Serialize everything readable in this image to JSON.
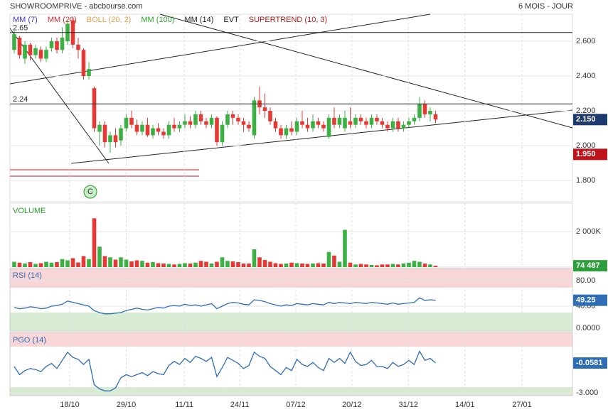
{
  "header": {
    "title": "SHOWROOMPRIVE - abcbourse.com",
    "period": "6 MOIS - JOUR"
  },
  "chart_data": [
    {
      "type": "candlestick",
      "legend": [
        {
          "name": "MM (7)",
          "color": "#3a3acc"
        },
        {
          "name": "MM (20)",
          "color": "#d03030"
        },
        {
          "name": "BOLL (20, 2)",
          "color": "#e8a04a"
        },
        {
          "name": "MM (100)",
          "color": "#2aa52a"
        },
        {
          "name": "MM (14)",
          "color": "#222222"
        },
        {
          "name": "EVT",
          "color": "#222222"
        },
        {
          "name": "SUPERTREND (10, 3)",
          "color": "#b01818"
        }
      ],
      "up_color": "#3cb043",
      "down_color": "#e53935",
      "open": [
        2.55,
        2.62,
        2.5,
        2.58,
        2.52,
        2.55,
        2.5,
        2.56,
        2.6,
        2.55,
        2.6,
        2.72,
        2.58,
        2.55,
        2.4,
        2.33,
        2.08,
        2.12,
        2.02,
        2.06,
        2.03,
        2.1,
        2.16,
        2.12,
        2.08,
        2.12,
        2.06,
        2.1,
        2.08,
        2.06,
        2.12,
        2.1,
        2.12,
        2.14,
        2.12,
        2.18,
        2.14,
        2.12,
        2.16,
        2.02,
        2.12,
        2.18,
        2.16,
        2.14,
        2.12,
        2.06,
        2.26,
        2.22,
        2.2,
        2.14,
        2.1,
        2.06,
        2.1,
        2.08,
        2.14,
        2.12,
        2.1,
        2.14,
        2.12,
        2.05,
        2.16,
        2.12,
        2.1,
        2.14,
        2.12,
        2.16,
        2.14,
        2.12,
        2.16,
        2.14,
        2.12,
        2.1,
        2.14,
        2.1,
        2.12,
        2.14,
        2.16,
        2.24,
        2.18,
        2.18
      ],
      "high": [
        2.66,
        2.63,
        2.6,
        2.59,
        2.58,
        2.57,
        2.57,
        2.62,
        2.62,
        2.68,
        2.72,
        2.74,
        2.62,
        2.56,
        2.48,
        2.34,
        2.14,
        2.14,
        2.08,
        2.1,
        2.12,
        2.18,
        2.2,
        2.15,
        2.14,
        2.16,
        2.12,
        2.13,
        2.1,
        2.14,
        2.16,
        2.14,
        2.18,
        2.17,
        2.2,
        2.2,
        2.16,
        2.18,
        2.17,
        2.14,
        2.2,
        2.2,
        2.18,
        2.16,
        2.14,
        2.28,
        2.34,
        2.3,
        2.22,
        2.16,
        2.12,
        2.12,
        2.14,
        2.16,
        2.2,
        2.16,
        2.18,
        2.16,
        2.14,
        2.18,
        2.22,
        2.18,
        2.2,
        2.22,
        2.18,
        2.18,
        2.16,
        2.18,
        2.18,
        2.16,
        2.14,
        2.16,
        2.16,
        2.14,
        2.16,
        2.18,
        2.28,
        2.26,
        2.22,
        2.2
      ],
      "low": [
        2.53,
        2.5,
        2.47,
        2.49,
        2.5,
        2.48,
        2.48,
        2.54,
        2.53,
        2.53,
        2.58,
        2.56,
        2.5,
        2.38,
        2.38,
        2.08,
        2.0,
        1.99,
        1.96,
        1.99,
        2.0,
        2.08,
        2.1,
        2.06,
        2.06,
        2.05,
        2.04,
        2.06,
        2.04,
        2.04,
        2.08,
        2.08,
        2.1,
        2.1,
        2.1,
        2.12,
        2.1,
        2.1,
        2.0,
        2.0,
        2.1,
        2.12,
        2.12,
        2.08,
        2.08,
        2.04,
        2.18,
        2.16,
        2.12,
        2.08,
        2.04,
        2.04,
        2.06,
        2.06,
        2.1,
        2.08,
        2.08,
        2.1,
        2.08,
        2.04,
        2.1,
        2.1,
        2.08,
        2.1,
        2.1,
        2.12,
        2.1,
        2.1,
        2.12,
        2.1,
        2.08,
        2.08,
        2.08,
        2.08,
        2.1,
        2.12,
        2.14,
        2.16,
        2.14,
        2.13
      ],
      "close": [
        2.64,
        2.52,
        2.58,
        2.52,
        2.56,
        2.5,
        2.55,
        2.6,
        2.55,
        2.62,
        2.7,
        2.58,
        2.55,
        2.4,
        2.44,
        2.1,
        2.12,
        2.02,
        2.06,
        2.02,
        2.1,
        2.16,
        2.12,
        2.08,
        2.12,
        2.06,
        2.1,
        2.08,
        2.06,
        2.12,
        2.1,
        2.12,
        2.14,
        2.12,
        2.18,
        2.14,
        2.12,
        2.16,
        2.02,
        2.12,
        2.18,
        2.16,
        2.14,
        2.12,
        2.1,
        2.26,
        2.22,
        2.2,
        2.14,
        2.1,
        2.06,
        2.1,
        2.08,
        2.14,
        2.12,
        2.1,
        2.14,
        2.12,
        2.1,
        2.16,
        2.12,
        2.16,
        2.16,
        2.12,
        2.16,
        2.14,
        2.12,
        2.16,
        2.14,
        2.12,
        2.1,
        2.14,
        2.1,
        2.12,
        2.14,
        2.16,
        2.24,
        2.18,
        2.2,
        2.15
      ],
      "xlim": [
        -0.8,
        104.67
      ],
      "xticks": [
        {
          "value": 10.4,
          "label": "18/10"
        },
        {
          "value": 21.0,
          "label": "29/10"
        },
        {
          "value": 31.9,
          "label": "11/11"
        },
        {
          "value": 42.3,
          "label": "24/11"
        },
        {
          "value": 52.8,
          "label": "07/12"
        },
        {
          "value": 63.3,
          "label": "20/12"
        },
        {
          "value": 73.9,
          "label": "31/12"
        },
        {
          "value": 84.5,
          "label": "14/01"
        },
        {
          "value": 95.2,
          "label": "27/01"
        }
      ],
      "ylim": [
        1.678,
        2.755
      ],
      "yticks": [
        {
          "value": 1.8,
          "label": "1.800"
        },
        {
          "value": 2.0,
          "label": "2.000"
        },
        {
          "value": 2.2,
          "label": "2.200"
        },
        {
          "value": 2.4,
          "label": "2.400"
        },
        {
          "value": 2.6,
          "label": "2.600"
        }
      ],
      "levels": [
        {
          "value": 2.65,
          "label": "2.65"
        },
        {
          "value": 2.24,
          "label": "2.24"
        }
      ],
      "price_labels": [
        {
          "value": 2.15,
          "label": "2.150",
          "color": "#1f3a6e"
        },
        {
          "value": 1.95,
          "label": "1.950",
          "color": "#c0141c"
        }
      ],
      "annotations": [
        "C"
      ]
    },
    {
      "type": "volume",
      "title": "VOLUME",
      "values": [
        300000,
        250000,
        200000,
        280000,
        180000,
        220000,
        300000,
        250000,
        280000,
        450000,
        380000,
        500000,
        260000,
        620000,
        450000,
        2750000,
        1150000,
        620000,
        550000,
        420000,
        550000,
        420000,
        320000,
        380000,
        350000,
        250000,
        280000,
        220000,
        200000,
        180000,
        150000,
        180000,
        220000,
        200000,
        250000,
        350000,
        300000,
        200000,
        300000,
        550000,
        350000,
        320000,
        280000,
        200000,
        200000,
        1000000,
        550000,
        400000,
        300000,
        220000,
        180000,
        200000,
        250000,
        220000,
        200000,
        180000,
        200000,
        220000,
        200000,
        850000,
        650000,
        300000,
        2100000,
        250000,
        150000,
        180000,
        150000,
        120000,
        100000,
        150000,
        150000,
        180000,
        150000,
        200000,
        250000,
        350000,
        300000,
        200000,
        150000,
        74487
      ],
      "ylim": [
        0,
        3600000
      ],
      "yticks": [
        {
          "value": 2000000,
          "label": "2 000K"
        }
      ],
      "price_labels": [
        {
          "value": 74487,
          "label": "74 487",
          "color": "#2e9e3e"
        }
      ]
    },
    {
      "type": "line",
      "title": "RSI (14)",
      "color": "#2f6db5",
      "values": [
        38,
        36,
        37,
        39,
        38,
        36,
        37,
        40,
        41,
        43,
        48,
        46,
        44,
        42,
        40,
        33,
        30,
        28,
        28,
        29,
        30,
        33,
        35,
        37,
        35,
        34,
        36,
        38,
        37,
        40,
        41,
        40,
        43,
        41,
        42,
        40,
        42,
        44,
        36,
        40,
        44,
        46,
        45,
        43,
        42,
        50,
        49,
        47,
        44,
        42,
        40,
        42,
        41,
        44,
        43,
        42,
        44,
        43,
        42,
        46,
        44,
        46,
        45,
        44,
        46,
        45,
        44,
        46,
        45,
        44,
        43,
        45,
        43,
        44,
        45,
        46,
        53,
        49,
        50,
        49.25
      ],
      "ylim": [
        1.1,
        98.9
      ],
      "yticks": [
        {
          "value": 0,
          "label": "0.0000"
        },
        {
          "value": 40,
          "label": "40.00"
        },
        {
          "value": 80,
          "label": "80.00"
        }
      ],
      "price_labels": [
        {
          "value": 49.25,
          "label": "49.25",
          "color": "#2f6db5"
        }
      ]
    },
    {
      "type": "line",
      "title": "PGO (14)",
      "color": "#2f6db5",
      "values": [
        -0.4,
        -1.2,
        -0.8,
        -0.6,
        -0.7,
        -0.9,
        -0.4,
        -0.1,
        -0.6,
        0.2,
        1.0,
        0.5,
        0.3,
        -0.2,
        0.3,
        -2.2,
        -2.6,
        -2.8,
        -2.8,
        -2.5,
        -1.5,
        -1.2,
        -1.4,
        -1.2,
        -1.0,
        -1.3,
        -0.9,
        -1.1,
        -1.2,
        -0.3,
        0.1,
        -0.2,
        0.4,
        0.0,
        0.6,
        0.4,
        0.1,
        0.5,
        -1.4,
        -0.5,
        0.5,
        0.2,
        -0.1,
        -0.6,
        -0.3,
        1.0,
        0.6,
        0.4,
        -0.4,
        -0.8,
        -1.2,
        -0.5,
        -0.8,
        0.3,
        -0.2,
        -0.4,
        0.0,
        -0.5,
        -0.8,
        0.4,
        0.0,
        0.4,
        -0.1,
        1.0,
        0.1,
        -0.3,
        -0.2,
        0.2,
        -0.4,
        -0.4,
        -0.6,
        0.0,
        -0.4,
        -0.2,
        0.2,
        -0.2,
        1.1,
        0.2,
        0.4,
        -0.0581
      ],
      "ylim": [
        -3.27,
        2.95
      ],
      "yticks": [
        {
          "value": -3,
          "label": "-3.000"
        }
      ],
      "price_labels": [
        {
          "value": -0.0581,
          "label": "-0.0581",
          "color": "#2f6db5"
        }
      ]
    }
  ]
}
